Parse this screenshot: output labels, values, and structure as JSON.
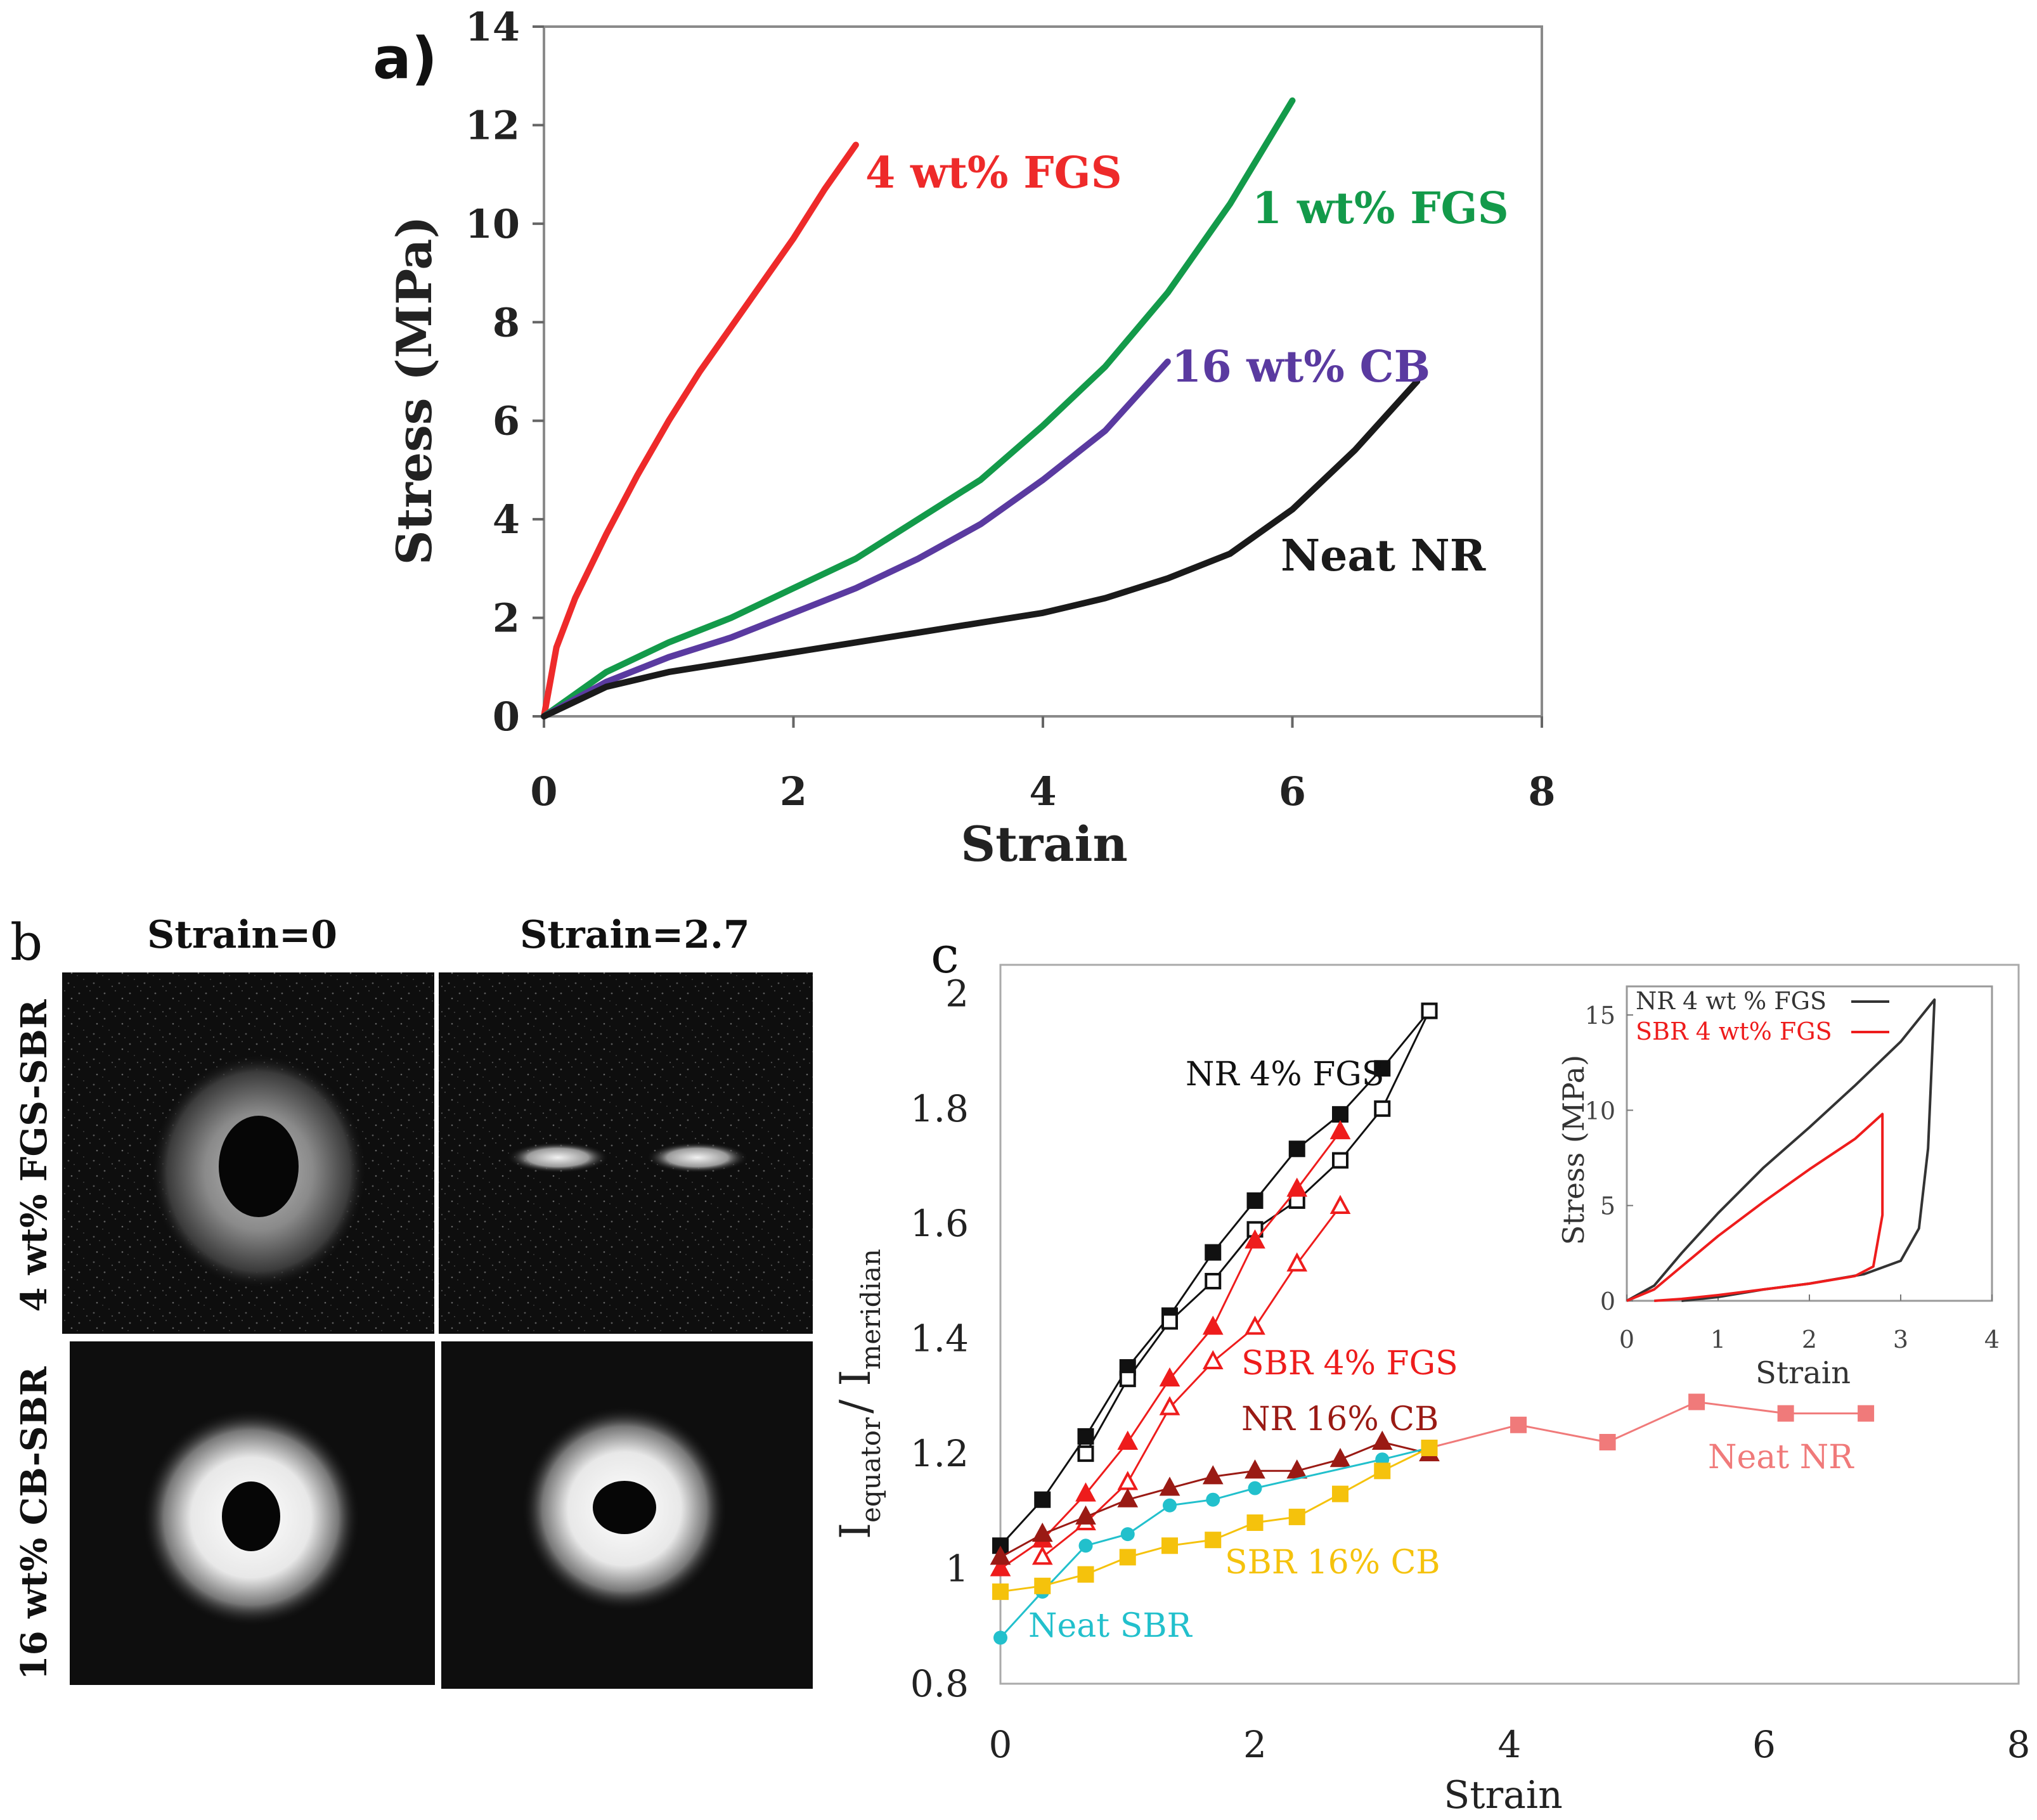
{
  "panels": {
    "a": {
      "letter": "a)",
      "chart_data": {
        "type": "line",
        "title": "",
        "xlabel": "Strain",
        "ylabel": "Stress (MPa)",
        "xlim": [
          0,
          8
        ],
        "ylim": [
          0,
          14
        ],
        "xticks": [
          0,
          2,
          4,
          6,
          8
        ],
        "yticks": [
          0,
          2,
          4,
          6,
          8,
          10,
          12,
          14
        ],
        "grid": false,
        "series": [
          {
            "name": "4 wt% FGS",
            "color": "#ee2a2a",
            "x": [
              0,
              0.1,
              0.25,
              0.5,
              0.75,
              1.0,
              1.25,
              1.5,
              1.75,
              2.0,
              2.25,
              2.5
            ],
            "y": [
              0,
              1.4,
              2.4,
              3.7,
              4.9,
              6.0,
              7.0,
              7.9,
              8.8,
              9.7,
              10.7,
              11.6
            ]
          },
          {
            "name": "1 wt% FGS",
            "color": "#139a4a",
            "x": [
              0,
              0.5,
              1.0,
              1.5,
              2.0,
              2.5,
              3.0,
              3.5,
              4.0,
              4.5,
              5.0,
              5.5,
              6.0
            ],
            "y": [
              0,
              0.9,
              1.5,
              2.0,
              2.6,
              3.2,
              4.0,
              4.8,
              5.9,
              7.1,
              8.6,
              10.4,
              12.5
            ]
          },
          {
            "name": "16 wt% CB",
            "color": "#5a3aa0",
            "x": [
              0,
              0.5,
              1.0,
              1.5,
              2.0,
              2.5,
              3.0,
              3.5,
              4.0,
              4.5,
              5.0
            ],
            "y": [
              0,
              0.7,
              1.2,
              1.6,
              2.1,
              2.6,
              3.2,
              3.9,
              4.8,
              5.8,
              7.2
            ]
          },
          {
            "name": "Neat NR",
            "color": "#1a1a1a",
            "x": [
              0,
              0.5,
              1.0,
              1.5,
              2.0,
              2.5,
              3.0,
              3.5,
              4.0,
              4.5,
              5.0,
              5.5,
              6.0,
              6.5,
              7.0
            ],
            "y": [
              0,
              0.6,
              0.9,
              1.1,
              1.3,
              1.5,
              1.7,
              1.9,
              2.1,
              2.4,
              2.8,
              3.3,
              4.2,
              5.4,
              6.8
            ]
          }
        ],
        "annotations": [
          "4 wt% FGS",
          "1 wt% FGS",
          "16 wt% CB",
          "Neat NR"
        ]
      }
    },
    "b": {
      "letter": "b",
      "col_labels": [
        "Strain=0",
        "Strain=2.7"
      ],
      "row_labels": [
        "4 wt% FGS-SBR",
        "16 wt% CB-SBR"
      ]
    },
    "c": {
      "letter": "c",
      "chart_data": {
        "type": "line",
        "title": "",
        "xlabel": "Strain",
        "ylabel": "I equator / I meridian",
        "ylabel_main": "I",
        "ylabel_sub1": "equator",
        "ylabel_sep": "/ I",
        "ylabel_sub2": "meridian",
        "xlim": [
          0,
          8
        ],
        "ylim": [
          0.8,
          2.05
        ],
        "xticks": [
          0,
          2,
          4,
          6,
          8
        ],
        "yticks": [
          0.8,
          1,
          1.2,
          1.4,
          1.6,
          1.8,
          2
        ],
        "ytick_labels": [
          "0.8",
          "1",
          "1.2",
          "1.4",
          "1.6",
          "1.8",
          "2"
        ],
        "grid": false,
        "series": [
          {
            "name": "NR 4% FGS (filled)",
            "color": "#111111",
            "marker": "square-filled",
            "x": [
              0,
              0.33,
              0.67,
              1.0,
              1.33,
              1.67,
              2.0,
              2.33,
              2.67,
              3.0,
              3.37
            ],
            "y": [
              1.04,
              1.12,
              1.23,
              1.35,
              1.44,
              1.55,
              1.64,
              1.73,
              1.79,
              1.87,
              1.97
            ]
          },
          {
            "name": "NR 4% FGS (open)",
            "color": "#111111",
            "marker": "square-open",
            "x": [
              0.67,
              1.0,
              1.33,
              1.67,
              2.0,
              2.33,
              2.67,
              3.0,
              3.37
            ],
            "y": [
              1.2,
              1.33,
              1.43,
              1.5,
              1.59,
              1.64,
              1.71,
              1.8,
              1.97
            ]
          },
          {
            "name": "SBR 4% FGS (filled)",
            "color": "#ee1c1c",
            "marker": "triangle-filled",
            "x": [
              0,
              0.33,
              0.67,
              1.0,
              1.33,
              1.67,
              2.0,
              2.33,
              2.67
            ],
            "y": [
              1.0,
              1.05,
              1.13,
              1.22,
              1.33,
              1.42,
              1.57,
              1.66,
              1.76
            ]
          },
          {
            "name": "SBR 4% FGS (open)",
            "color": "#ee1c1c",
            "marker": "triangle-open",
            "x": [
              0.33,
              0.67,
              1.0,
              1.33,
              1.67,
              2.0,
              2.33,
              2.67
            ],
            "y": [
              1.02,
              1.08,
              1.15,
              1.28,
              1.36,
              1.42,
              1.53,
              1.63
            ]
          },
          {
            "name": "NR 16% CB",
            "color": "#9a1a14",
            "marker": "triangle-filled",
            "x": [
              0,
              0.33,
              0.67,
              1.0,
              1.33,
              1.67,
              2.0,
              2.33,
              2.67,
              3.0,
              3.37
            ],
            "y": [
              1.02,
              1.06,
              1.09,
              1.12,
              1.14,
              1.16,
              1.17,
              1.17,
              1.19,
              1.22,
              1.2
            ]
          },
          {
            "name": "Neat NR",
            "color": "#f07a7a",
            "marker": "square-filled",
            "x": [
              3.37,
              4.07,
              4.77,
              5.47,
              6.17,
              6.8
            ],
            "y": [
              1.21,
              1.25,
              1.22,
              1.29,
              1.27,
              1.27
            ]
          },
          {
            "name": "Neat SBR",
            "color": "#22c0cc",
            "marker": "circle-filled",
            "x": [
              0,
              0.33,
              0.67,
              1.0,
              1.33,
              1.67,
              2.0,
              3.0,
              3.37
            ],
            "y": [
              0.88,
              0.96,
              1.04,
              1.06,
              1.11,
              1.12,
              1.14,
              1.19,
              1.21
            ]
          },
          {
            "name": "SBR 16% CB",
            "color": "#f5c20c",
            "marker": "square-filled",
            "x": [
              0,
              0.33,
              0.67,
              1.0,
              1.33,
              1.67,
              2.0,
              2.33,
              2.67,
              3.0,
              3.37
            ],
            "y": [
              0.96,
              0.97,
              0.99,
              1.02,
              1.04,
              1.05,
              1.08,
              1.09,
              1.13,
              1.17,
              1.21
            ]
          }
        ],
        "annotations": [
          {
            "text": "NR 4% FGS",
            "color": "#111111"
          },
          {
            "text": "SBR 4% FGS",
            "color": "#ee1c1c"
          },
          {
            "text": "NR 16% CB",
            "color": "#9a1a14"
          },
          {
            "text": "Neat NR",
            "color": "#f07a7a"
          },
          {
            "text": "SBR 16% CB",
            "color": "#f5c20c"
          },
          {
            "text": "Neat SBR",
            "color": "#22c0cc"
          }
        ],
        "inset": {
          "type": "line",
          "xlabel": "Strain",
          "ylabel": "Stress (MPa)",
          "xlim": [
            0,
            4
          ],
          "ylim": [
            0,
            16.5
          ],
          "xticks": [
            0,
            1,
            2,
            3,
            4
          ],
          "yticks": [
            0,
            5,
            10,
            15
          ],
          "legend": [
            {
              "name": "NR 4 wt % FGS",
              "color": "#333333"
            },
            {
              "name": "SBR 4 wt% FGS",
              "color": "#ee1c1c"
            }
          ],
          "series": [
            {
              "name": "NR 4 wt % FGS",
              "color": "#333333",
              "x": [
                0,
                0.3,
                0.6,
                1.0,
                1.5,
                2.0,
                2.5,
                3.0,
                3.37,
                3.3,
                3.2,
                3.0,
                2.6,
                2.0,
                1.5,
                1.0,
                0.6
              ],
              "y": [
                0,
                0.8,
                2.5,
                4.6,
                7.0,
                9.1,
                11.3,
                13.6,
                15.8,
                8.0,
                3.8,
                2.1,
                1.4,
                0.9,
                0.6,
                0.2,
                0
              ]
            },
            {
              "name": "SBR 4 wt% FGS",
              "color": "#ee1c1c",
              "x": [
                0,
                0.3,
                0.6,
                1.0,
                1.5,
                2.0,
                2.5,
                2.8,
                2.8,
                2.7,
                2.5,
                2.0,
                1.5,
                1.0,
                0.6,
                0.3
              ],
              "y": [
                0,
                0.6,
                1.8,
                3.4,
                5.2,
                6.9,
                8.5,
                9.8,
                4.5,
                1.8,
                1.3,
                0.9,
                0.6,
                0.3,
                0.1,
                0
              ]
            }
          ]
        }
      }
    }
  }
}
